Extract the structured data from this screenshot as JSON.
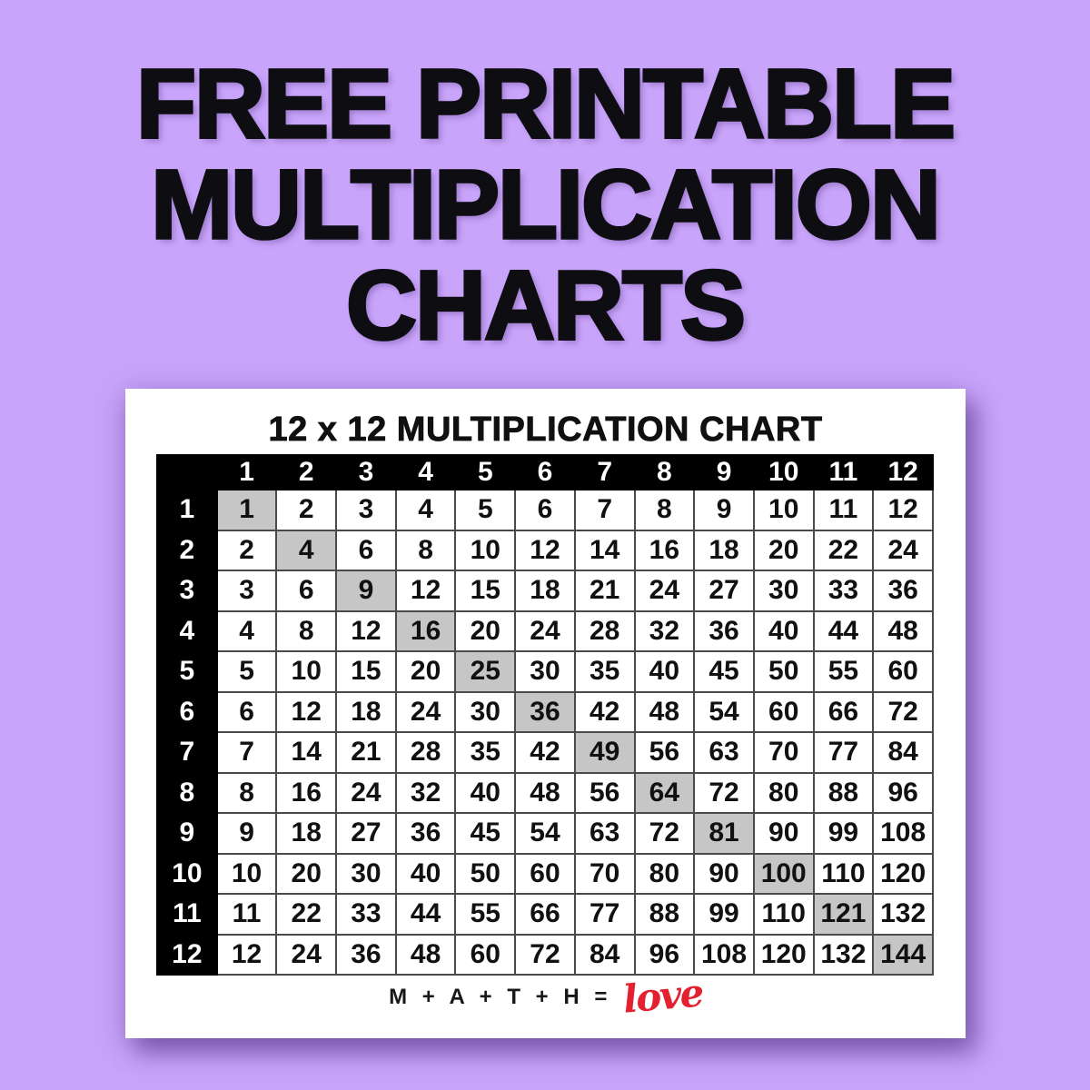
{
  "background_color": "#c8a4fa",
  "title": {
    "lines": [
      "FREE PRINTABLE",
      "MULTIPLICATION",
      "CHARTS"
    ],
    "color": "#0d0d12"
  },
  "card": {
    "chart_title": "12 x 12 MULTIPLICATION CHART",
    "footer": {
      "equation": "M + A + T + H =",
      "love": "love",
      "love_color": "#e32030"
    }
  },
  "chart_data": {
    "type": "table",
    "title": "12 x 12 MULTIPLICATION CHART",
    "column_headers": [
      1,
      2,
      3,
      4,
      5,
      6,
      7,
      8,
      9,
      10,
      11,
      12
    ],
    "row_headers": [
      1,
      2,
      3,
      4,
      5,
      6,
      7,
      8,
      9,
      10,
      11,
      12
    ],
    "rows": [
      [
        1,
        2,
        3,
        4,
        5,
        6,
        7,
        8,
        9,
        10,
        11,
        12
      ],
      [
        2,
        4,
        6,
        8,
        10,
        12,
        14,
        16,
        18,
        20,
        22,
        24
      ],
      [
        3,
        6,
        9,
        12,
        15,
        18,
        21,
        24,
        27,
        30,
        33,
        36
      ],
      [
        4,
        8,
        12,
        16,
        20,
        24,
        28,
        32,
        36,
        40,
        44,
        48
      ],
      [
        5,
        10,
        15,
        20,
        25,
        30,
        35,
        40,
        45,
        50,
        55,
        60
      ],
      [
        6,
        12,
        18,
        24,
        30,
        36,
        42,
        48,
        54,
        60,
        66,
        72
      ],
      [
        7,
        14,
        21,
        28,
        35,
        42,
        49,
        56,
        63,
        70,
        77,
        84
      ],
      [
        8,
        16,
        24,
        32,
        40,
        48,
        56,
        64,
        72,
        80,
        88,
        96
      ],
      [
        9,
        18,
        27,
        36,
        45,
        54,
        63,
        72,
        81,
        90,
        99,
        108
      ],
      [
        10,
        20,
        30,
        40,
        50,
        60,
        70,
        80,
        90,
        100,
        110,
        120
      ],
      [
        11,
        22,
        33,
        44,
        55,
        66,
        77,
        88,
        99,
        110,
        121,
        132
      ],
      [
        12,
        24,
        36,
        48,
        60,
        72,
        84,
        96,
        108,
        120,
        132,
        144
      ]
    ],
    "highlighted_cells": "main diagonal (perfect squares 1,4,9,16,25,36,49,64,81,100,121,144)",
    "highlight_color": "#c6c6c6",
    "header_bg": "#000000",
    "header_text_color": "#ffffff",
    "grid_color": "#4a4a4a"
  }
}
